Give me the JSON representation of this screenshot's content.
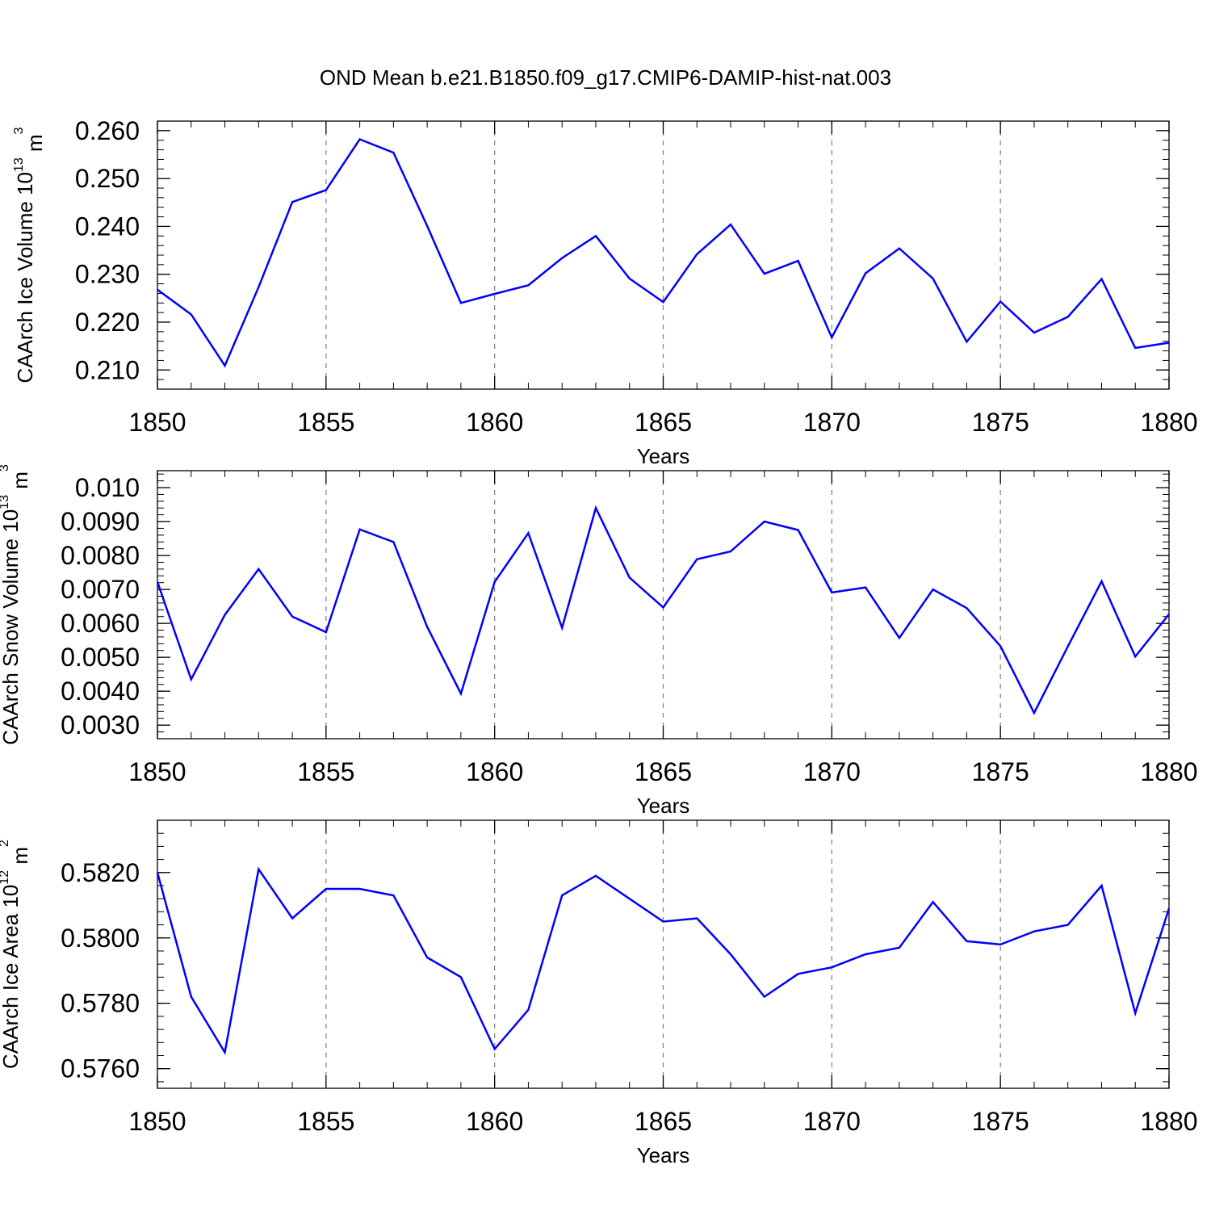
{
  "title": "OND Mean b.e21.B1850.f09_g17.CMIP6-DAMIP-hist-nat.003",
  "colors": {
    "line": "#0000ff",
    "axes": "#000000",
    "grid": "#808080"
  },
  "chart_data": [
    {
      "type": "line",
      "ylabel": {
        "main": "CAArch Ice Volume 10",
        "sup1": "13",
        "unit": " m",
        "sup2": "3"
      },
      "xlabel": "Years",
      "xlim": [
        1850,
        1880
      ],
      "ylim": [
        0.206,
        0.262
      ],
      "x_ticks": [
        "1850",
        "1855",
        "1860",
        "1865",
        "1870",
        "1875",
        "1880"
      ],
      "y_ticks": [
        "0.210",
        "0.220",
        "0.230",
        "0.240",
        "0.250",
        "0.260"
      ],
      "y_tick_values": [
        0.21,
        0.22,
        0.23,
        0.24,
        0.25,
        0.26
      ],
      "grid": "vertical dashed at major x ticks",
      "x": [
        1850,
        1851,
        1852,
        1853,
        1854,
        1855,
        1856,
        1857,
        1858,
        1859,
        1860,
        1861,
        1862,
        1863,
        1864,
        1865,
        1866,
        1867,
        1868,
        1869,
        1870,
        1871,
        1872,
        1873,
        1874,
        1875,
        1876,
        1877,
        1878,
        1879,
        1880
      ],
      "values": [
        0.2268,
        0.2216,
        0.2109,
        0.2273,
        0.2451,
        0.2476,
        0.2582,
        0.2554,
        0.2401,
        0.224,
        0.2259,
        0.2277,
        0.2334,
        0.238,
        0.2291,
        0.2242,
        0.2342,
        0.2404,
        0.2301,
        0.2328,
        0.2168,
        0.2302,
        0.2354,
        0.2291,
        0.2159,
        0.2243,
        0.2178,
        0.2211,
        0.229,
        0.2146,
        0.2157
      ]
    },
    {
      "type": "line",
      "ylabel": {
        "main": "CAArch Snow Volume 10",
        "sup1": "13",
        "unit": " m",
        "sup2": "3"
      },
      "xlabel": "Years",
      "xlim": [
        1850,
        1880
      ],
      "ylim": [
        0.0026,
        0.0105
      ],
      "x_ticks": [
        "1850",
        "1855",
        "1860",
        "1865",
        "1870",
        "1875",
        "1880"
      ],
      "y_ticks": [
        "0.0030",
        "0.0040",
        "0.0050",
        "0.0060",
        "0.0070",
        "0.0080",
        "0.0090",
        "0.010"
      ],
      "y_tick_values": [
        0.003,
        0.004,
        0.005,
        0.006,
        0.007,
        0.008,
        0.009,
        0.01
      ],
      "grid": "vertical dashed at major x ticks",
      "x": [
        1850,
        1851,
        1852,
        1853,
        1854,
        1855,
        1856,
        1857,
        1858,
        1859,
        1860,
        1861,
        1862,
        1863,
        1864,
        1865,
        1866,
        1867,
        1868,
        1869,
        1870,
        1871,
        1872,
        1873,
        1874,
        1875,
        1876,
        1877,
        1878,
        1879,
        1880
      ],
      "values": [
        0.00722,
        0.00435,
        0.00625,
        0.0076,
        0.0062,
        0.00574,
        0.00877,
        0.0084,
        0.0059,
        0.00393,
        0.00722,
        0.00866,
        0.00587,
        0.0094,
        0.00735,
        0.00647,
        0.00789,
        0.00812,
        0.009,
        0.00875,
        0.00691,
        0.00706,
        0.00557,
        0.007,
        0.00645,
        0.00533,
        0.00336,
        0.00532,
        0.00724,
        0.00502,
        0.00627
      ]
    },
    {
      "type": "line",
      "ylabel": {
        "main": "CAArch Ice Area 10",
        "sup1": "12",
        "unit": " m",
        "sup2": "2"
      },
      "xlabel": "Years",
      "xlim": [
        1850,
        1880
      ],
      "ylim": [
        0.5754,
        0.5836
      ],
      "x_ticks": [
        "1850",
        "1855",
        "1860",
        "1865",
        "1870",
        "1875",
        "1880"
      ],
      "y_ticks": [
        "0.5760",
        "0.5780",
        "0.5800",
        "0.5820"
      ],
      "y_tick_values": [
        0.576,
        0.578,
        0.58,
        0.582
      ],
      "grid": "vertical dashed at major x ticks",
      "x": [
        1850,
        1851,
        1852,
        1853,
        1854,
        1855,
        1856,
        1857,
        1858,
        1859,
        1860,
        1861,
        1862,
        1863,
        1864,
        1865,
        1866,
        1867,
        1868,
        1869,
        1870,
        1871,
        1872,
        1873,
        1874,
        1875,
        1876,
        1877,
        1878,
        1879,
        1880
      ],
      "values": [
        0.582,
        0.5782,
        0.5765,
        0.5821,
        0.5806,
        0.5815,
        0.5815,
        0.5813,
        0.5794,
        0.5788,
        0.5766,
        0.5778,
        0.5813,
        0.5819,
        0.5812,
        0.5805,
        0.5806,
        0.5795,
        0.5782,
        0.5789,
        0.5791,
        0.5795,
        0.5797,
        0.5811,
        0.5799,
        0.5798,
        0.5802,
        0.5804,
        0.5816,
        0.5777,
        0.5809
      ]
    }
  ]
}
